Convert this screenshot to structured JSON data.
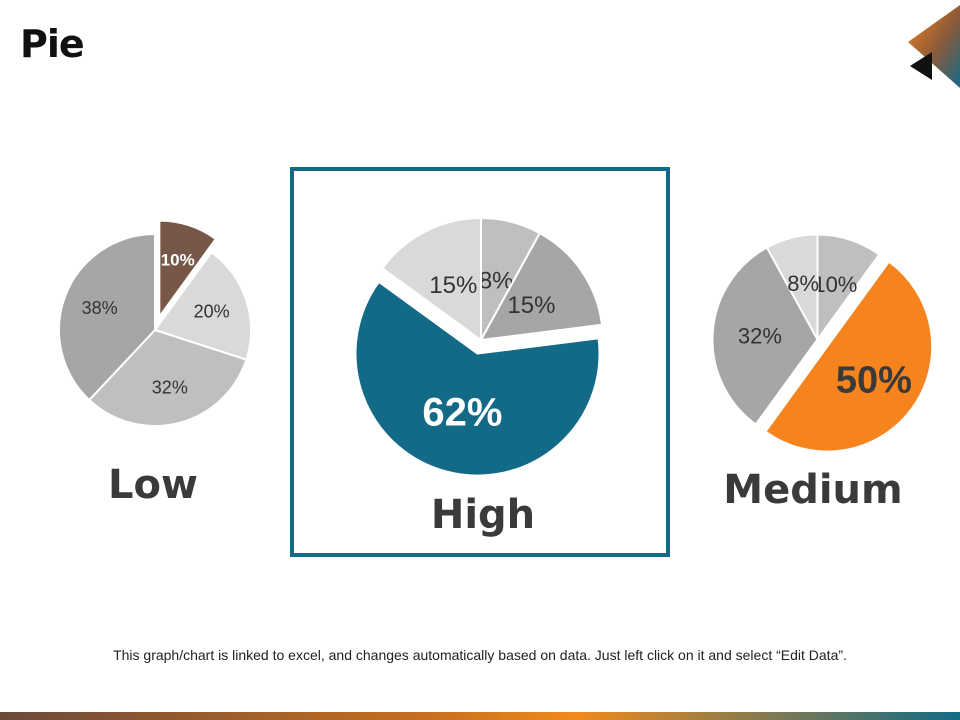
{
  "title": "Pie",
  "footnote": "This graph/chart is linked to excel, and changes automatically based on data. Just left click on it and select “Edit Data”.",
  "colors": {
    "accent_teal": "#136a87",
    "accent_orange": "#f5841f",
    "accent_brown": "#765748"
  },
  "chart_data": [
    {
      "type": "pie",
      "title": "Low",
      "start_angle_deg": 0,
      "slices": [
        {
          "label": "10%",
          "value": 10,
          "color": "#765748",
          "exploded": true,
          "text_color": "#ffffff",
          "bold": true
        },
        {
          "label": "20%",
          "value": 20,
          "color": "#d9d9d9",
          "exploded": false,
          "text_color": "#333333",
          "bold": false
        },
        {
          "label": "32%",
          "value": 32,
          "color": "#bfbfbf",
          "exploded": false,
          "text_color": "#333333",
          "bold": false
        },
        {
          "label": "38%",
          "value": 38,
          "color": "#a6a6a6",
          "exploded": false,
          "text_color": "#333333",
          "bold": false
        }
      ]
    },
    {
      "type": "pie",
      "title": "High",
      "start_angle_deg": 0,
      "slices": [
        {
          "label": "8%",
          "value": 8,
          "color": "#bfbfbf",
          "exploded": false,
          "text_color": "#333333",
          "bold": false
        },
        {
          "label": "15%",
          "value": 15,
          "color": "#a6a6a6",
          "exploded": false,
          "text_color": "#333333",
          "bold": false
        },
        {
          "label": "62%",
          "value": 62,
          "color": "#136a87",
          "exploded": true,
          "text_color": "#ffffff",
          "bold": true
        },
        {
          "label": "15%",
          "value": 15,
          "color": "#d9d9d9",
          "exploded": false,
          "text_color": "#333333",
          "bold": false
        }
      ]
    },
    {
      "type": "pie",
      "title": "Medium",
      "start_angle_deg": 0,
      "slices": [
        {
          "label": "10%",
          "value": 10,
          "color": "#bfbfbf",
          "exploded": false,
          "text_color": "#333333",
          "bold": false
        },
        {
          "label": "50%",
          "value": 50,
          "color": "#f5841f",
          "exploded": true,
          "text_color": "#3a3a3a",
          "bold": true
        },
        {
          "label": "32%",
          "value": 32,
          "color": "#a6a6a6",
          "exploded": false,
          "text_color": "#333333",
          "bold": false
        },
        {
          "label": "8%",
          "value": 8,
          "color": "#d9d9d9",
          "exploded": false,
          "text_color": "#333333",
          "bold": false
        }
      ]
    }
  ]
}
